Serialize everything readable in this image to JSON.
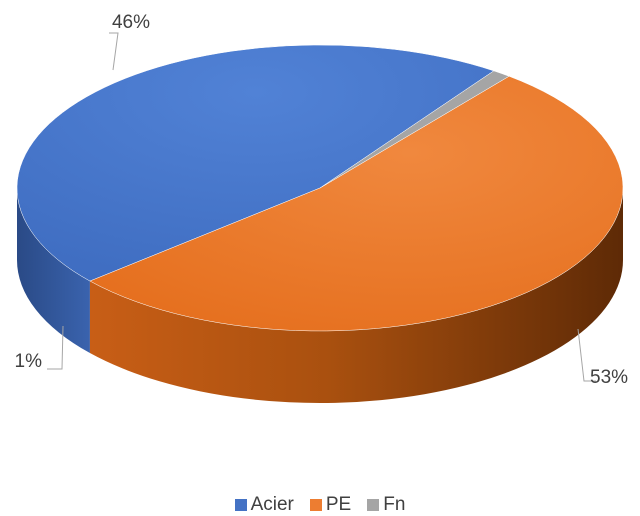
{
  "chart_data": {
    "type": "pie",
    "style": "3d",
    "series": [
      {
        "name": "Acier",
        "value": 46,
        "label": "46%",
        "color": "#4472C4"
      },
      {
        "name": "PE",
        "value": 53,
        "label": "53%",
        "color": "#ED7D31"
      },
      {
        "name": "Fn",
        "value": 1,
        "label": "1%",
        "color": "#A5A5A5"
      }
    ],
    "legend_position": "bottom"
  }
}
